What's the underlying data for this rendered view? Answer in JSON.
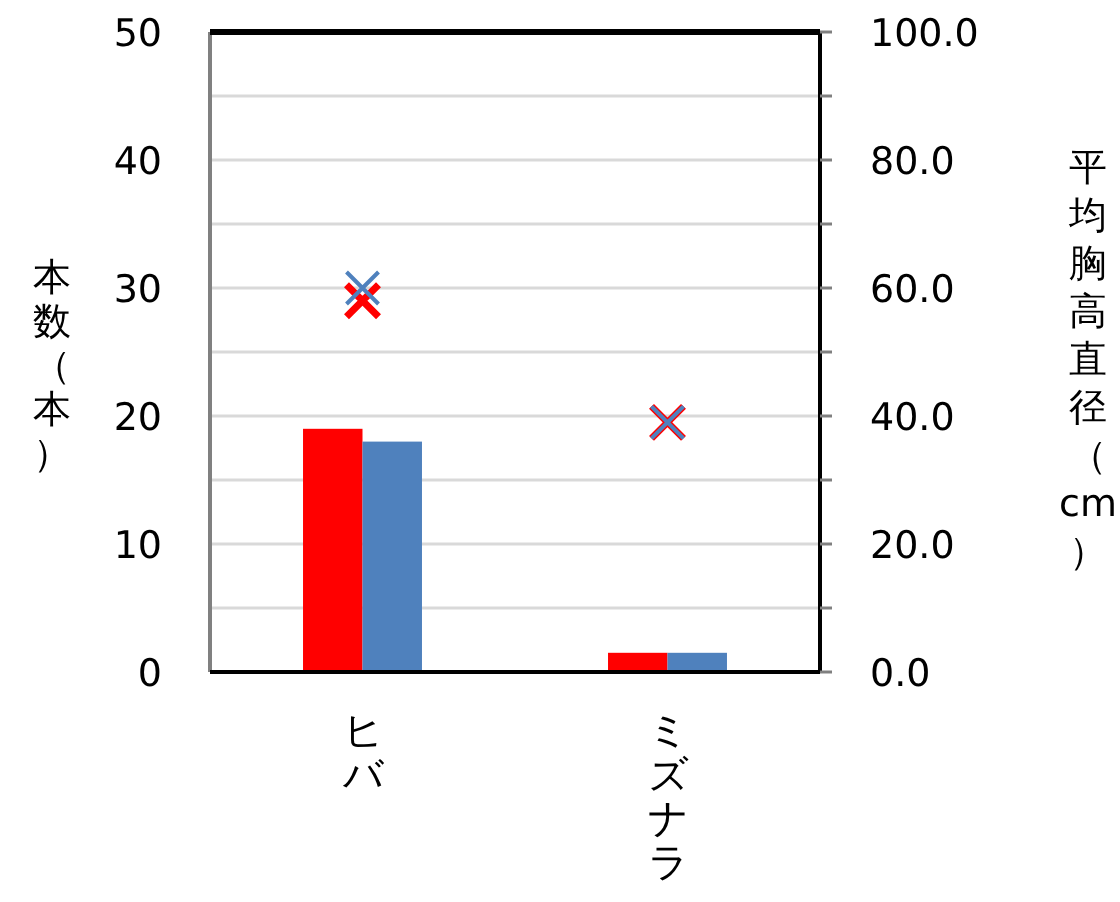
{
  "chart_data": {
    "type": "bar",
    "ylabel": "本数（本）",
    "y2label": "平均胸高直径（cm）",
    "categories": [
      "ヒバ",
      "ミズナラ"
    ],
    "series": [
      {
        "color": "#ff0000",
        "values": [
          19,
          1.5
        ]
      },
      {
        "color": "#4f81bd",
        "values": [
          18,
          1.5
        ]
      },
      {
        "type": "scatter",
        "axis": "y2",
        "marker": "cross",
        "color": "#ff0000",
        "values": [
          58,
          39
        ]
      },
      {
        "type": "scatter",
        "axis": "y2",
        "marker": "cross",
        "color": "#4f81bd",
        "values": [
          60,
          39
        ]
      }
    ],
    "ylim": [
      0,
      50
    ],
    "yticks": [
      0,
      {
        "value": 5,
        "label": null
      },
      10,
      {
        "value": 15,
        "label": null
      },
      20,
      {
        "value": 25,
        "label": null
      },
      30,
      {
        "value": 35,
        "label": null
      },
      40,
      {
        "value": 45,
        "label": null
      },
      50
    ],
    "y2lim": [
      0,
      100
    ],
    "y2ticks": [
      {
        "value": 0,
        "label": "0.0"
      },
      {
        "value": 10,
        "label": null
      },
      {
        "value": 20,
        "label": "20.0"
      },
      {
        "value": 30,
        "label": null
      },
      {
        "value": 40,
        "label": "40.0"
      },
      {
        "value": 50,
        "label": null
      },
      {
        "value": 60,
        "label": "60.0"
      },
      {
        "value": 70,
        "label": null
      },
      {
        "value": 80,
        "label": "80.0"
      },
      {
        "value": 90,
        "label": null
      },
      {
        "value": 100,
        "label": "100.0"
      }
    ],
    "grid": "y"
  }
}
